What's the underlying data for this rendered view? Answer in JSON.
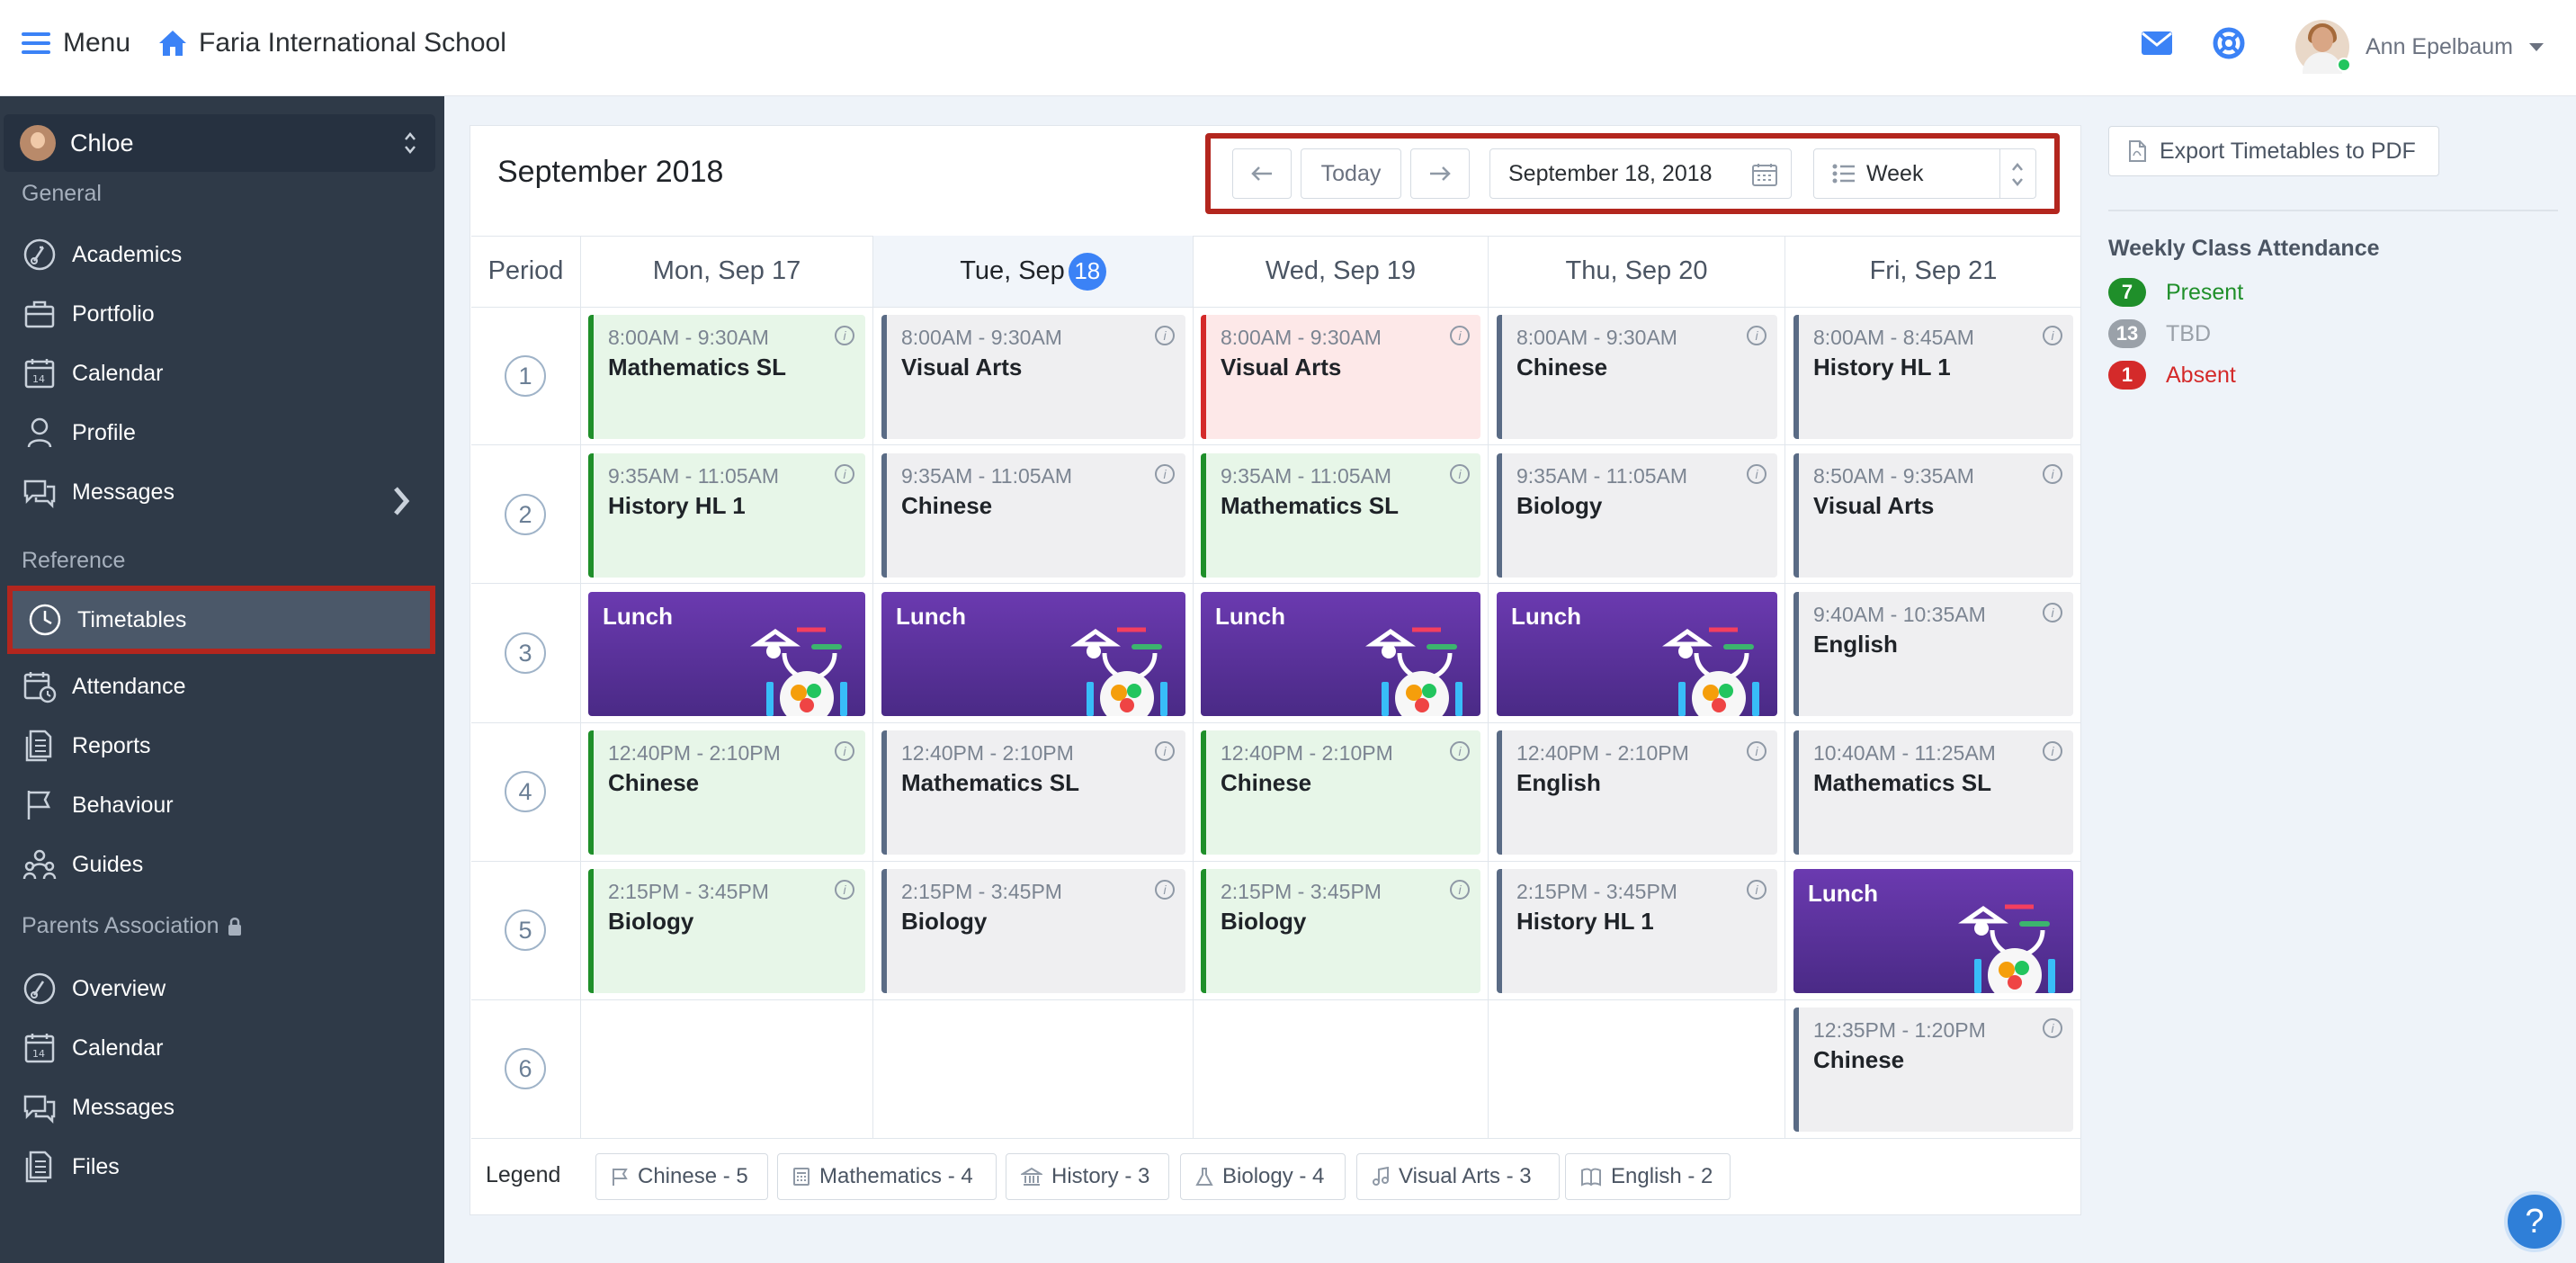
{
  "topbar": {
    "menu_label": "Menu",
    "school_name": "Faria International School",
    "user_name": "Ann Epelbaum",
    "icons": [
      "envelope-icon",
      "lifebuoy-icon"
    ]
  },
  "sidebar": {
    "student": "Chloe",
    "sections": [
      {
        "title": "General",
        "items": [
          "Academics",
          "Portfolio",
          "Calendar",
          "Profile",
          "Messages"
        ]
      },
      {
        "title": "Reference",
        "items": [
          "Timetables",
          "Attendance",
          "Reports",
          "Behaviour",
          "Guides"
        ]
      },
      {
        "title": "Parents Association",
        "items": [
          "Overview",
          "Calendar",
          "Messages",
          "Files"
        ]
      }
    ],
    "active_item": "Timetables"
  },
  "calendar": {
    "month_title": "September 2018",
    "today_label": "Today",
    "date_value": "September 18, 2018",
    "view_value": "Week",
    "period_header": "Period",
    "days": [
      {
        "label": "Mon, Sep 17"
      },
      {
        "label": "Tue, Sep",
        "badge": "18"
      },
      {
        "label": "Wed, Sep 19"
      },
      {
        "label": "Thu, Sep 20"
      },
      {
        "label": "Fri, Sep 21"
      }
    ],
    "periods": [
      "1",
      "2",
      "3",
      "4",
      "5",
      "6"
    ],
    "lunch_label": "Lunch",
    "classes": {
      "mon": [
        {
          "time": "8:00AM - 9:30AM",
          "name": "Mathematics SL",
          "status": "present"
        },
        {
          "time": "9:35AM - 11:05AM",
          "name": "History HL 1",
          "status": "present"
        },
        {
          "time": "",
          "name": "Lunch",
          "status": "lunch"
        },
        {
          "time": "12:40PM - 2:10PM",
          "name": "Chinese",
          "status": "present"
        },
        {
          "time": "2:15PM - 3:45PM",
          "name": "Biology",
          "status": "present"
        }
      ],
      "tue": [
        {
          "time": "8:00AM - 9:30AM",
          "name": "Visual Arts",
          "status": "tbd"
        },
        {
          "time": "9:35AM - 11:05AM",
          "name": "Chinese",
          "status": "tbd"
        },
        {
          "time": "",
          "name": "Lunch",
          "status": "lunch"
        },
        {
          "time": "12:40PM - 2:10PM",
          "name": "Mathematics SL",
          "status": "tbd"
        },
        {
          "time": "2:15PM - 3:45PM",
          "name": "Biology",
          "status": "tbd"
        }
      ],
      "wed": [
        {
          "time": "8:00AM - 9:30AM",
          "name": "Visual Arts",
          "status": "absent"
        },
        {
          "time": "9:35AM - 11:05AM",
          "name": "Mathematics SL",
          "status": "present"
        },
        {
          "time": "",
          "name": "Lunch",
          "status": "lunch"
        },
        {
          "time": "12:40PM - 2:10PM",
          "name": "Chinese",
          "status": "present"
        },
        {
          "time": "2:15PM - 3:45PM",
          "name": "Biology",
          "status": "present"
        }
      ],
      "thu": [
        {
          "time": "8:00AM - 9:30AM",
          "name": "Chinese",
          "status": "tbd"
        },
        {
          "time": "9:35AM - 11:05AM",
          "name": "Biology",
          "status": "tbd"
        },
        {
          "time": "",
          "name": "Lunch",
          "status": "lunch"
        },
        {
          "time": "12:40PM - 2:10PM",
          "name": "English",
          "status": "tbd"
        },
        {
          "time": "2:15PM - 3:45PM",
          "name": "History HL 1",
          "status": "tbd"
        }
      ],
      "fri": [
        {
          "time": "8:00AM - 8:45AM",
          "name": "History HL 1",
          "status": "tbd"
        },
        {
          "time": "8:50AM - 9:35AM",
          "name": "Visual Arts",
          "status": "tbd"
        },
        {
          "time": "9:40AM - 10:35AM",
          "name": "English",
          "status": "tbd"
        },
        {
          "time": "10:40AM - 11:25AM",
          "name": "Mathematics SL",
          "status": "tbd"
        },
        {
          "time": "",
          "name": "Lunch",
          "status": "lunch"
        },
        {
          "time": "12:35PM - 1:20PM",
          "name": "Chinese",
          "status": "tbd"
        }
      ]
    },
    "legend_label": "Legend",
    "legend": [
      {
        "text": "Chinese - 5",
        "icon": "flag-icon"
      },
      {
        "text": "Mathematics - 4",
        "icon": "calculator-icon"
      },
      {
        "text": "History - 3",
        "icon": "building-columns-icon"
      },
      {
        "text": "Biology - 4",
        "icon": "flask-icon"
      },
      {
        "text": "Visual Arts - 3",
        "icon": "music-note-icon"
      },
      {
        "text": "English - 2",
        "icon": "book-icon"
      }
    ]
  },
  "right_panel": {
    "export_label": "Export Timetables to PDF",
    "attendance_title": "Weekly Class Attendance",
    "attendance": [
      {
        "count": "7",
        "label": "Present",
        "color": "#1f8f2a"
      },
      {
        "count": "13",
        "label": "TBD",
        "color": "#9aa1a9"
      },
      {
        "count": "1",
        "label": "Absent",
        "color": "#d42a2a"
      }
    ]
  },
  "help_label": "?"
}
